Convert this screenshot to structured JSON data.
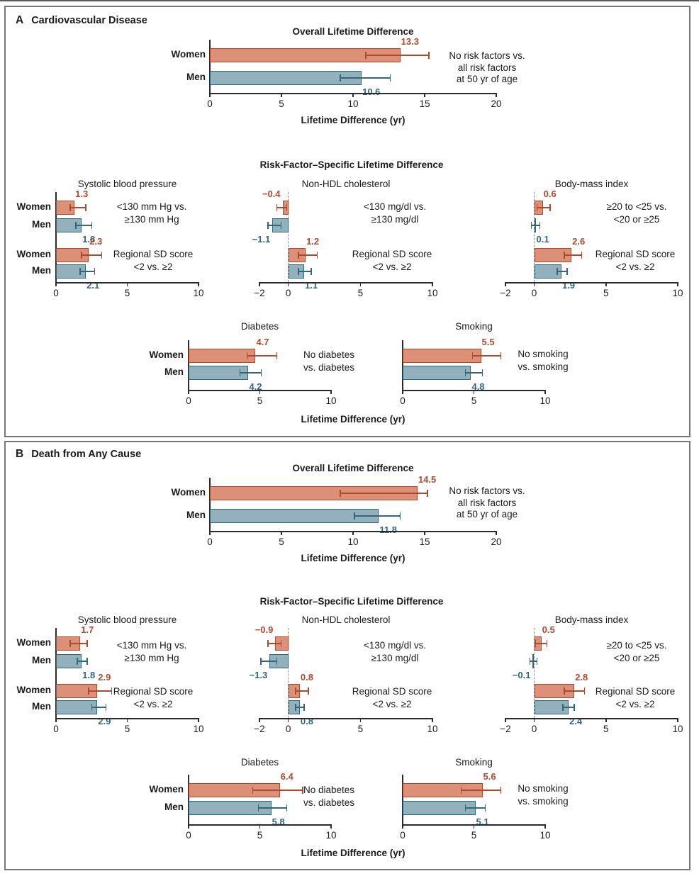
{
  "panels": [
    {
      "letter": "A",
      "title": "Cardiovascular Disease",
      "risk_heading": "Risk-Factor–Specific Lifetime Difference",
      "xaxis_label": "Lifetime Difference (yr)"
    },
    {
      "letter": "B",
      "title": "Death from Any Cause",
      "risk_heading": "Risk-Factor–Specific Lifetime Difference",
      "xaxis_label": "Lifetime Difference (yr)"
    }
  ],
  "colors": {
    "women_fill": "#DB9077",
    "women_stroke": "#AB4A2F",
    "women_text": "#B04A2E",
    "men_fill": "#93B1BC",
    "men_stroke": "#30687A",
    "men_text": "#30687A",
    "axis": "#2b2b2b",
    "text": "#1a1a1a",
    "panel_border": "#767676",
    "zero_dash": "#8a8a8a"
  },
  "chart_data": [
    {
      "id": "a_overall",
      "panel": "A",
      "type": "bar",
      "orientation": "horizontal",
      "title": "Overall Lifetime Difference",
      "xlim": [
        0,
        20
      ],
      "xticks": [
        {
          "v": 0,
          "label": "0"
        },
        {
          "v": 5,
          "label": "5"
        },
        {
          "v": 10,
          "label": "10"
        },
        {
          "v": 15,
          "label": "15"
        },
        {
          "v": 20,
          "label": "20"
        }
      ],
      "groups": [
        {
          "annotation": [
            "No risk factors vs.",
            "all risk factors",
            "at 50 yr of age"
          ],
          "rows": [
            {
              "category": "Women",
              "series": "women",
              "value": 13.3,
              "display": "13.3",
              "ci": [
                10.9,
                15.3
              ]
            },
            {
              "category": "Men",
              "series": "men",
              "value": 10.6,
              "display": "10.6",
              "ci": [
                9.1,
                12.6
              ]
            }
          ]
        }
      ]
    },
    {
      "id": "a_sbp",
      "panel": "A",
      "type": "bar",
      "orientation": "horizontal",
      "title": "Systolic blood pressure",
      "xlim": [
        0,
        10
      ],
      "xticks": [
        {
          "v": 0,
          "label": "0"
        },
        {
          "v": 5,
          "label": "5"
        },
        {
          "v": 10,
          "label": "10"
        }
      ],
      "groups": [
        {
          "annotation": [
            "<130 mm Hg vs.",
            "≥130 mm Hg"
          ],
          "rows": [
            {
              "category": "Women",
              "series": "women",
              "value": 1.3,
              "display": "1.3",
              "ci": [
                1.0,
                2.1
              ]
            },
            {
              "category": "Men",
              "series": "men",
              "value": 1.8,
              "display": "1.8",
              "ci": [
                1.4,
                2.5
              ]
            }
          ]
        },
        {
          "annotation": [
            "Regional SD score",
            "<2 vs. ≥2"
          ],
          "rows": [
            {
              "category": "Women",
              "series": "women",
              "value": 2.3,
              "display": "2.3",
              "ci": [
                1.8,
                3.2
              ]
            },
            {
              "category": "Men",
              "series": "men",
              "value": 2.1,
              "display": "2.1",
              "ci": [
                1.7,
                2.7
              ]
            }
          ]
        }
      ]
    },
    {
      "id": "a_chol",
      "panel": "A",
      "type": "bar",
      "orientation": "horizontal",
      "title": "Non-HDL cholesterol",
      "xlim": [
        -2,
        10
      ],
      "xticks": [
        {
          "v": -2,
          "label": "−2"
        },
        {
          "v": 0,
          "label": "0"
        },
        {
          "v": 5,
          "label": "5"
        },
        {
          "v": 10,
          "label": "10"
        }
      ],
      "groups": [
        {
          "annotation": [
            "<130 mg/dl vs.",
            "≥130 mg/dl"
          ],
          "rows": [
            {
              "category": "Women",
              "series": "women",
              "value": -0.4,
              "display": "−0.4",
              "ci": [
                -0.8,
                -0.1
              ]
            },
            {
              "category": "Men",
              "series": "men",
              "value": -1.1,
              "display": "−1.1",
              "ci": [
                -1.4,
                -0.5
              ]
            }
          ]
        },
        {
          "annotation": [
            "Regional SD score",
            "<2 vs. ≥2"
          ],
          "rows": [
            {
              "category": "Women",
              "series": "women",
              "value": 1.2,
              "display": "1.2",
              "ci": [
                0.7,
                2.0
              ]
            },
            {
              "category": "Men",
              "series": "men",
              "value": 1.1,
              "display": "1.1",
              "ci": [
                0.7,
                1.6
              ]
            }
          ]
        }
      ]
    },
    {
      "id": "a_bmi",
      "panel": "A",
      "type": "bar",
      "orientation": "horizontal",
      "title": "Body-mass index",
      "xlim": [
        -2,
        10
      ],
      "xticks": [
        {
          "v": -2,
          "label": "−2"
        },
        {
          "v": 0,
          "label": "0"
        },
        {
          "v": 5,
          "label": "5"
        },
        {
          "v": 10,
          "label": "10"
        }
      ],
      "groups": [
        {
          "annotation": [
            "≥20 to <25 vs.",
            "<20 or ≥25"
          ],
          "rows": [
            {
              "category": "Women",
              "series": "women",
              "value": 0.6,
              "display": "0.6",
              "ci": [
                0.2,
                1.1
              ]
            },
            {
              "category": "Men",
              "series": "men",
              "value": 0.1,
              "display": "0.1",
              "ci": [
                -0.2,
                0.4
              ]
            }
          ]
        },
        {
          "annotation": [
            "Regional SD score",
            "<2 vs. ≥2"
          ],
          "rows": [
            {
              "category": "Women",
              "series": "women",
              "value": 2.6,
              "display": "2.6",
              "ci": [
                2.1,
                3.3
              ]
            },
            {
              "category": "Men",
              "series": "men",
              "value": 1.9,
              "display": "1.9",
              "ci": [
                1.6,
                2.3
              ]
            }
          ]
        }
      ]
    },
    {
      "id": "a_diabetes",
      "panel": "A",
      "type": "bar",
      "orientation": "horizontal",
      "title": "Diabetes",
      "xlim": [
        0,
        10
      ],
      "xticks": [
        {
          "v": 0,
          "label": "0"
        },
        {
          "v": 5,
          "label": "5"
        },
        {
          "v": 10,
          "label": "10"
        }
      ],
      "groups": [
        {
          "annotation": [
            "No diabetes",
            "vs. diabetes"
          ],
          "rows": [
            {
              "category": "Women",
              "series": "women",
              "value": 4.7,
              "display": "4.7",
              "ci": [
                4.1,
                6.2
              ]
            },
            {
              "category": "Men",
              "series": "men",
              "value": 4.2,
              "display": "4.2",
              "ci": [
                3.6,
                5.1
              ]
            }
          ]
        }
      ]
    },
    {
      "id": "a_smoking",
      "panel": "A",
      "type": "bar",
      "orientation": "horizontal",
      "title": "Smoking",
      "xlim": [
        0,
        10
      ],
      "xticks": [
        {
          "v": 0,
          "label": "0"
        },
        {
          "v": 5,
          "label": "5"
        },
        {
          "v": 10,
          "label": "10"
        }
      ],
      "groups": [
        {
          "annotation": [
            "No smoking",
            "vs. smoking"
          ],
          "rows": [
            {
              "category": "Women",
              "series": "women",
              "value": 5.5,
              "display": "5.5",
              "ci": [
                4.9,
                6.9
              ]
            },
            {
              "category": "Men",
              "series": "men",
              "value": 4.8,
              "display": "4.8",
              "ci": [
                4.4,
                5.6
              ]
            }
          ]
        }
      ]
    },
    {
      "id": "b_overall",
      "panel": "B",
      "type": "bar",
      "orientation": "horizontal",
      "title": "Overall Lifetime Difference",
      "xlim": [
        0,
        20
      ],
      "xticks": [
        {
          "v": 0,
          "label": "0"
        },
        {
          "v": 5,
          "label": "5"
        },
        {
          "v": 10,
          "label": "10"
        },
        {
          "v": 15,
          "label": "15"
        },
        {
          "v": 20,
          "label": "20"
        }
      ],
      "groups": [
        {
          "annotation": [
            "No risk factors vs.",
            "all risk factors",
            "at 50 yr of age"
          ],
          "rows": [
            {
              "category": "Women",
              "series": "women",
              "value": 14.5,
              "display": "14.5",
              "ci": [
                9.1,
                15.2
              ]
            },
            {
              "category": "Men",
              "series": "men",
              "value": 11.8,
              "display": "11.8",
              "ci": [
                10.1,
                13.3
              ]
            }
          ]
        }
      ]
    },
    {
      "id": "b_sbp",
      "panel": "B",
      "type": "bar",
      "orientation": "horizontal",
      "title": "Systolic blood pressure",
      "xlim": [
        0,
        10
      ],
      "xticks": [
        {
          "v": 0,
          "label": "0"
        },
        {
          "v": 5,
          "label": "5"
        },
        {
          "v": 10,
          "label": "10"
        }
      ],
      "groups": [
        {
          "annotation": [
            "<130 mm Hg vs.",
            "≥130 mm Hg"
          ],
          "rows": [
            {
              "category": "Women",
              "series": "women",
              "value": 1.7,
              "display": "1.7",
              "ci": [
                1.0,
                2.2
              ]
            },
            {
              "category": "Men",
              "series": "men",
              "value": 1.8,
              "display": "1.8",
              "ci": [
                1.5,
                2.2
              ]
            }
          ]
        },
        {
          "annotation": [
            "Regional SD score",
            "<2 vs. ≥2"
          ],
          "rows": [
            {
              "category": "Women",
              "series": "women",
              "value": 2.9,
              "display": "2.9",
              "ci": [
                2.3,
                3.9
              ]
            },
            {
              "category": "Men",
              "series": "men",
              "value": 2.9,
              "display": "2.9",
              "ci": [
                2.5,
                3.5
              ]
            }
          ]
        }
      ]
    },
    {
      "id": "b_chol",
      "panel": "B",
      "type": "bar",
      "orientation": "horizontal",
      "title": "Non-HDL cholesterol",
      "xlim": [
        -2,
        10
      ],
      "xticks": [
        {
          "v": -2,
          "label": "−2"
        },
        {
          "v": 0,
          "label": "0"
        },
        {
          "v": 5,
          "label": "5"
        },
        {
          "v": 10,
          "label": "10"
        }
      ],
      "groups": [
        {
          "annotation": [
            "<130 mg/dl vs.",
            "≥130 mg/dl"
          ],
          "rows": [
            {
              "category": "Women",
              "series": "women",
              "value": -0.9,
              "display": "−0.9",
              "ci": [
                -1.4,
                -0.5
              ]
            },
            {
              "category": "Men",
              "series": "men",
              "value": -1.3,
              "display": "−1.3",
              "ci": [
                -1.9,
                -0.8
              ]
            }
          ]
        },
        {
          "annotation": [
            "Regional SD score",
            "<2 vs. ≥2"
          ],
          "rows": [
            {
              "category": "Women",
              "series": "women",
              "value": 0.8,
              "display": "0.8",
              "ci": [
                0.5,
                1.4
              ]
            },
            {
              "category": "Men",
              "series": "men",
              "value": 0.8,
              "display": "0.8",
              "ci": [
                0.5,
                1.1
              ]
            }
          ]
        }
      ]
    },
    {
      "id": "b_bmi",
      "panel": "B",
      "type": "bar",
      "orientation": "horizontal",
      "title": "Body-mass index",
      "xlim": [
        -2,
        10
      ],
      "xticks": [
        {
          "v": -2,
          "label": "−2"
        },
        {
          "v": 0,
          "label": "0"
        },
        {
          "v": 5,
          "label": "5"
        },
        {
          "v": 10,
          "label": "10"
        }
      ],
      "groups": [
        {
          "annotation": [
            "≥20 to <25 vs.",
            "<20 or ≥25"
          ],
          "rows": [
            {
              "category": "Women",
              "series": "women",
              "value": 0.5,
              "display": "0.5",
              "ci": [
                0.1,
                0.9
              ]
            },
            {
              "category": "Men",
              "series": "men",
              "value": -0.1,
              "display": "−0.1",
              "ci": [
                -0.3,
                0.2
              ]
            }
          ]
        },
        {
          "annotation": [
            "Regional SD score",
            "<2 vs. ≥2"
          ],
          "rows": [
            {
              "category": "Women",
              "series": "women",
              "value": 2.8,
              "display": "2.8",
              "ci": [
                2.1,
                3.5
              ]
            },
            {
              "category": "Men",
              "series": "men",
              "value": 2.4,
              "display": "2.4",
              "ci": [
                2.0,
                2.8
              ]
            }
          ]
        }
      ]
    },
    {
      "id": "b_diabetes",
      "panel": "B",
      "type": "bar",
      "orientation": "horizontal",
      "title": "Diabetes",
      "xlim": [
        0,
        10
      ],
      "xticks": [
        {
          "v": 0,
          "label": "0"
        },
        {
          "v": 5,
          "label": "5"
        },
        {
          "v": 10,
          "label": "10"
        }
      ],
      "groups": [
        {
          "annotation": [
            "No diabetes",
            "vs. diabetes"
          ],
          "rows": [
            {
              "category": "Women",
              "series": "women",
              "value": 6.4,
              "display": "6.4",
              "ci": [
                4.5,
                8.0
              ]
            },
            {
              "category": "Men",
              "series": "men",
              "value": 5.8,
              "display": "5.8",
              "ci": [
                4.9,
                6.9
              ]
            }
          ]
        }
      ]
    },
    {
      "id": "b_smoking",
      "panel": "B",
      "type": "bar",
      "orientation": "horizontal",
      "title": "Smoking",
      "xlim": [
        0,
        10
      ],
      "xticks": [
        {
          "v": 0,
          "label": "0"
        },
        {
          "v": 5,
          "label": "5"
        },
        {
          "v": 10,
          "label": "10"
        }
      ],
      "groups": [
        {
          "annotation": [
            "No smoking",
            "vs. smoking"
          ],
          "rows": [
            {
              "category": "Women",
              "series": "women",
              "value": 5.6,
              "display": "5.6",
              "ci": [
                4.1,
                6.9
              ]
            },
            {
              "category": "Men",
              "series": "men",
              "value": 5.1,
              "display": "5.1",
              "ci": [
                4.4,
                5.8
              ]
            }
          ]
        }
      ]
    }
  ]
}
